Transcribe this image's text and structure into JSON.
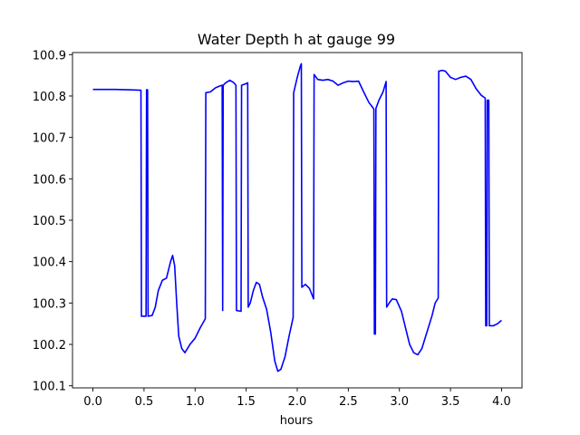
{
  "chart_data": {
    "type": "line",
    "title": "Water Depth h at gauge 99",
    "xlabel": "hours",
    "ylabel": "",
    "xlim": [
      -0.2,
      4.2
    ],
    "ylim": [
      100.095,
      100.905
    ],
    "xticks": [
      0.0,
      0.5,
      1.0,
      1.5,
      2.0,
      2.5,
      3.0,
      3.5,
      4.0
    ],
    "xtick_labels": [
      "0.0",
      "0.5",
      "1.0",
      "1.5",
      "2.0",
      "2.5",
      "3.0",
      "3.5",
      "4.0"
    ],
    "yticks": [
      100.1,
      100.2,
      100.3,
      100.4,
      100.5,
      100.6,
      100.7,
      100.8,
      100.9
    ],
    "ytick_labels": [
      "100.1",
      "100.2",
      "100.3",
      "100.4",
      "100.5",
      "100.6",
      "100.7",
      "100.8",
      "100.9"
    ],
    "grid": false,
    "legend": "none",
    "series": [
      {
        "color": "#0000ff",
        "points": [
          [
            0.0,
            100.816
          ],
          [
            0.2,
            100.816
          ],
          [
            0.35,
            100.815
          ],
          [
            0.47,
            100.814
          ],
          [
            0.475,
            100.268
          ],
          [
            0.52,
            100.268
          ],
          [
            0.525,
            100.815
          ],
          [
            0.535,
            100.815
          ],
          [
            0.54,
            100.268
          ],
          [
            0.58,
            100.27
          ],
          [
            0.61,
            100.29
          ],
          [
            0.64,
            100.33
          ],
          [
            0.68,
            100.355
          ],
          [
            0.72,
            100.36
          ],
          [
            0.76,
            100.4
          ],
          [
            0.78,
            100.415
          ],
          [
            0.8,
            100.39
          ],
          [
            0.82,
            100.3
          ],
          [
            0.84,
            100.22
          ],
          [
            0.87,
            100.19
          ],
          [
            0.9,
            100.18
          ],
          [
            0.95,
            100.2
          ],
          [
            1.0,
            100.215
          ],
          [
            1.05,
            100.24
          ],
          [
            1.1,
            100.262
          ],
          [
            1.105,
            100.808
          ],
          [
            1.15,
            100.81
          ],
          [
            1.2,
            100.82
          ],
          [
            1.25,
            100.825
          ],
          [
            1.265,
            100.826
          ],
          [
            1.27,
            100.282
          ],
          [
            1.275,
            100.826
          ],
          [
            1.3,
            100.832
          ],
          [
            1.34,
            100.838
          ],
          [
            1.38,
            100.832
          ],
          [
            1.4,
            100.826
          ],
          [
            1.405,
            100.282
          ],
          [
            1.45,
            100.28
          ],
          [
            1.455,
            100.826
          ],
          [
            1.5,
            100.83
          ],
          [
            1.515,
            100.832
          ],
          [
            1.52,
            100.29
          ],
          [
            1.54,
            100.3
          ],
          [
            1.57,
            100.33
          ],
          [
            1.6,
            100.35
          ],
          [
            1.63,
            100.345
          ],
          [
            1.66,
            100.315
          ],
          [
            1.7,
            100.285
          ],
          [
            1.74,
            100.23
          ],
          [
            1.78,
            100.16
          ],
          [
            1.81,
            100.135
          ],
          [
            1.84,
            100.14
          ],
          [
            1.88,
            100.17
          ],
          [
            1.92,
            100.22
          ],
          [
            1.96,
            100.265
          ],
          [
            1.965,
            100.808
          ],
          [
            2.0,
            100.845
          ],
          [
            2.03,
            100.872
          ],
          [
            2.04,
            100.878
          ],
          [
            2.045,
            100.338
          ],
          [
            2.08,
            100.345
          ],
          [
            2.12,
            100.335
          ],
          [
            2.16,
            100.31
          ],
          [
            2.165,
            100.852
          ],
          [
            2.2,
            100.84
          ],
          [
            2.25,
            100.838
          ],
          [
            2.3,
            100.84
          ],
          [
            2.35,
            100.836
          ],
          [
            2.4,
            100.826
          ],
          [
            2.45,
            100.832
          ],
          [
            2.5,
            100.836
          ],
          [
            2.55,
            100.835
          ],
          [
            2.6,
            100.836
          ],
          [
            2.65,
            100.81
          ],
          [
            2.7,
            100.785
          ],
          [
            2.74,
            100.772
          ],
          [
            2.75,
            100.768
          ],
          [
            2.755,
            100.225
          ],
          [
            2.765,
            100.225
          ],
          [
            2.77,
            100.77
          ],
          [
            2.8,
            100.79
          ],
          [
            2.84,
            100.81
          ],
          [
            2.87,
            100.835
          ],
          [
            2.875,
            100.29
          ],
          [
            2.9,
            100.3
          ],
          [
            2.93,
            100.31
          ],
          [
            2.97,
            100.308
          ],
          [
            3.02,
            100.28
          ],
          [
            3.06,
            100.24
          ],
          [
            3.1,
            100.2
          ],
          [
            3.14,
            100.18
          ],
          [
            3.18,
            100.175
          ],
          [
            3.22,
            100.19
          ],
          [
            3.27,
            100.23
          ],
          [
            3.32,
            100.27
          ],
          [
            3.35,
            100.3
          ],
          [
            3.38,
            100.312
          ],
          [
            3.385,
            100.86
          ],
          [
            3.42,
            100.862
          ],
          [
            3.45,
            100.86
          ],
          [
            3.5,
            100.845
          ],
          [
            3.55,
            100.84
          ],
          [
            3.6,
            100.845
          ],
          [
            3.65,
            100.848
          ],
          [
            3.7,
            100.84
          ],
          [
            3.75,
            100.818
          ],
          [
            3.8,
            100.802
          ],
          [
            3.84,
            100.795
          ],
          [
            3.845,
            100.245
          ],
          [
            3.855,
            100.245
          ],
          [
            3.86,
            100.79
          ],
          [
            3.875,
            100.79
          ],
          [
            3.88,
            100.245
          ],
          [
            3.92,
            100.245
          ],
          [
            3.96,
            100.25
          ],
          [
            4.0,
            100.258
          ]
        ]
      }
    ]
  }
}
